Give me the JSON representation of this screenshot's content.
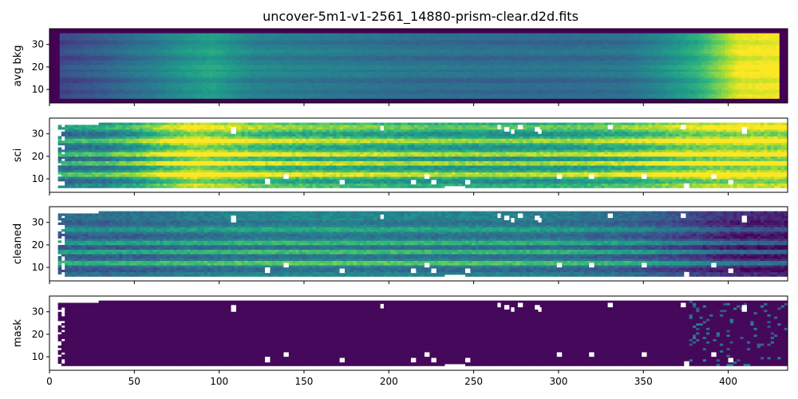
{
  "chart_data": {
    "type": "heatmap",
    "title": "uncover-5m1-v1-2561_14880-prism-clear.d2d.fits",
    "xlim": [
      0,
      435
    ],
    "ylim": [
      4,
      37
    ],
    "x_ticks": [
      0,
      50,
      100,
      150,
      200,
      250,
      300,
      350,
      400
    ],
    "y_ticks": [
      10,
      20,
      30
    ],
    "colormap": "viridis",
    "mask_color": "#ffffff",
    "panels": [
      {
        "ylabel": "avg bkg",
        "extent": {
          "x": [
            0,
            434
          ],
          "y": [
            5,
            35
          ]
        },
        "profile": [
          [
            0,
            0.2
          ],
          [
            10,
            0.24
          ],
          [
            30,
            0.3
          ],
          [
            60,
            0.42
          ],
          [
            80,
            0.52
          ],
          [
            95,
            0.58
          ],
          [
            105,
            0.52
          ],
          [
            120,
            0.45
          ],
          [
            150,
            0.42
          ],
          [
            200,
            0.38
          ],
          [
            250,
            0.36
          ],
          [
            300,
            0.36
          ],
          [
            340,
            0.38
          ],
          [
            360,
            0.48
          ],
          [
            380,
            0.62
          ],
          [
            395,
            0.82
          ],
          [
            405,
            0.97
          ],
          [
            434,
            1.0
          ]
        ],
        "stripes": [
          [
            9,
            -0.04
          ],
          [
            14,
            -0.06
          ],
          [
            17,
            0.04
          ],
          [
            20,
            0.05
          ],
          [
            24,
            -0.05
          ],
          [
            27,
            0.04
          ],
          [
            31,
            -0.05
          ]
        ],
        "noise": 0.02
      },
      {
        "ylabel": "sci",
        "extent": {
          "x": [
            5,
            434
          ],
          "y": [
            6,
            35
          ]
        },
        "profile": [
          [
            5,
            0.45
          ],
          [
            30,
            0.5
          ],
          [
            50,
            0.62
          ],
          [
            70,
            0.82
          ],
          [
            85,
            0.93
          ],
          [
            100,
            0.86
          ],
          [
            130,
            0.74
          ],
          [
            170,
            0.7
          ],
          [
            220,
            0.64
          ],
          [
            260,
            0.62
          ],
          [
            300,
            0.64
          ],
          [
            340,
            0.72
          ],
          [
            370,
            0.85
          ],
          [
            390,
            0.9
          ],
          [
            434,
            0.92
          ]
        ],
        "stripes": [
          [
            9,
            -0.14
          ],
          [
            12,
            0.26
          ],
          [
            15,
            -0.12
          ],
          [
            17,
            0.22
          ],
          [
            19,
            -0.12
          ],
          [
            21,
            0.24
          ],
          [
            24,
            -0.12
          ],
          [
            27,
            0.22
          ],
          [
            30,
            -0.12
          ],
          [
            33,
            0.12
          ]
        ],
        "noise": 0.07
      },
      {
        "ylabel": "cleaned",
        "extent": {
          "x": [
            5,
            434
          ],
          "y": [
            6,
            35
          ]
        },
        "profile": [
          [
            5,
            0.36
          ],
          [
            50,
            0.38
          ],
          [
            80,
            0.42
          ],
          [
            120,
            0.46
          ],
          [
            170,
            0.47
          ],
          [
            220,
            0.45
          ],
          [
            270,
            0.44
          ],
          [
            300,
            0.42
          ],
          [
            340,
            0.36
          ],
          [
            370,
            0.26
          ],
          [
            400,
            0.14
          ],
          [
            434,
            0.1
          ]
        ],
        "stripes": [
          [
            9,
            -0.1
          ],
          [
            12,
            0.28
          ],
          [
            15,
            -0.08
          ],
          [
            17,
            0.22
          ],
          [
            19,
            -0.08
          ],
          [
            21,
            0.2
          ],
          [
            24,
            -0.08
          ],
          [
            27,
            0.14
          ],
          [
            30,
            -0.06
          ]
        ],
        "noise": 0.06
      },
      {
        "ylabel": "mask",
        "extent": {
          "x": [
            5,
            434
          ],
          "y": [
            6,
            35
          ]
        },
        "profile": [
          [
            5,
            0.02
          ],
          [
            434,
            0.02
          ]
        ],
        "stripes": [],
        "noise": 0.0
      }
    ]
  }
}
